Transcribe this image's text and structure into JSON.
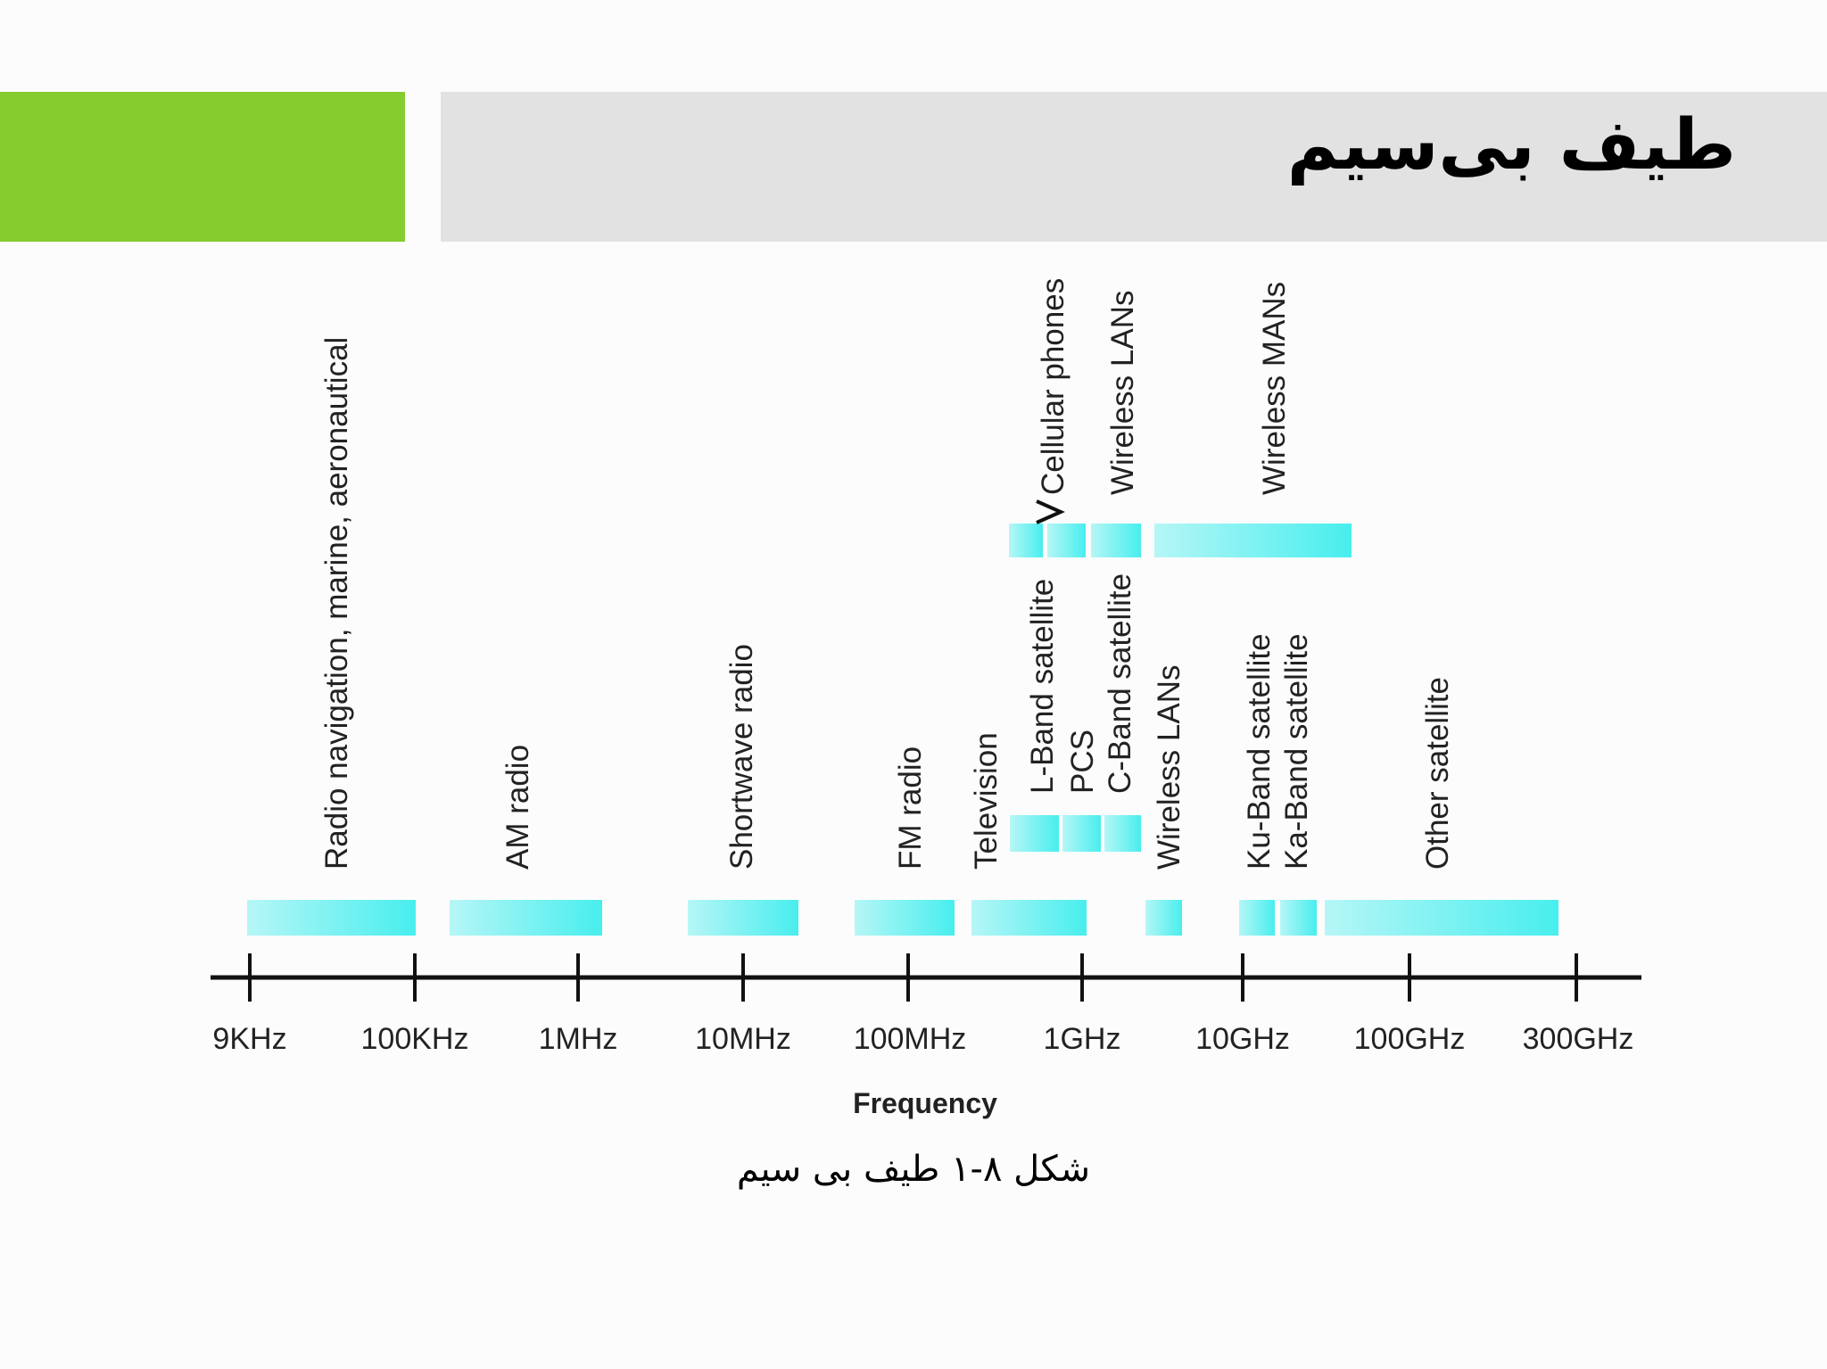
{
  "slide": {
    "title": "طیف بی‌سیم",
    "caption": "شکل ۸-۱ طیف بی سیم",
    "accent_color": "#85cc2e"
  },
  "chart_data": {
    "type": "spectrum-diagram",
    "axis": {
      "label": "Frequency",
      "ticks": [
        "9KHz",
        "100KHz",
        "1MHz",
        "10MHz",
        "100MHz",
        "1GHz",
        "10GHz",
        "100GHz",
        "300GHz"
      ]
    },
    "band_color": "#50f0f0",
    "bands_lower_row": [
      {
        "label": "Radio navigation, marine, aeronautical",
        "from": "9KHz",
        "to": "100KHz"
      },
      {
        "label": "AM radio",
        "from": "100KHz",
        "to": "1MHz"
      },
      {
        "label": "Shortwave radio",
        "from": "10MHz",
        "to": "10MHz"
      },
      {
        "label": "FM radio",
        "from": "100MHz",
        "to": "100MHz"
      },
      {
        "label": "Television",
        "from": "100MHz",
        "to": "1GHz"
      },
      {
        "label": "Wireless LANs",
        "from": "1GHz",
        "to": "10GHz"
      },
      {
        "label": "Ku-Band satellite",
        "from": "10GHz",
        "to": "10GHz"
      },
      {
        "label": "Ka-Band satellite",
        "from": "10GHz",
        "to": "100GHz"
      },
      {
        "label": "Other satellite",
        "from": "100GHz",
        "to": "300GHz"
      }
    ],
    "bands_middle_row": [
      {
        "label": "L-Band satellite"
      },
      {
        "label": "PCS"
      },
      {
        "label": "C-Band satellite"
      }
    ],
    "bands_upper_row": [
      {
        "label": "Cellular phones"
      },
      {
        "label": "Wireless LANs"
      },
      {
        "label": "Wireless MANs"
      }
    ]
  }
}
